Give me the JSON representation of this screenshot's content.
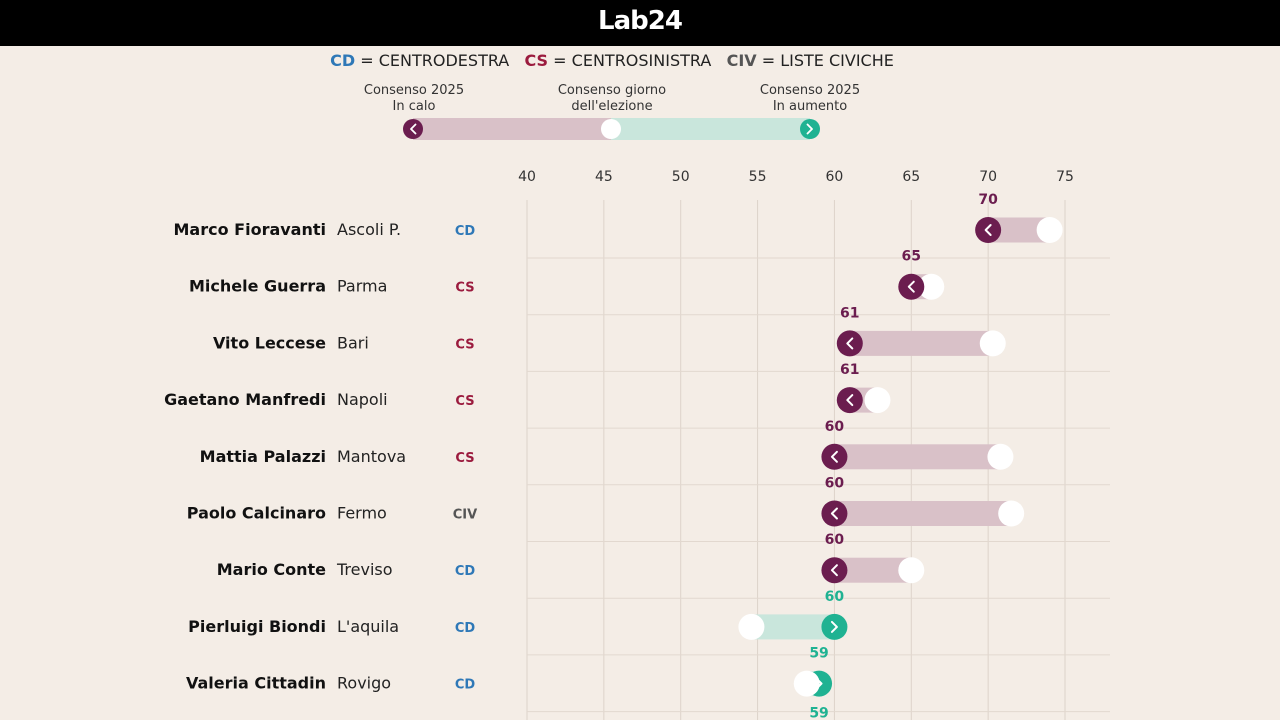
{
  "header": {
    "logo": "Lab24"
  },
  "legend": {
    "cd_code": "CD",
    "cd_label": "= CENTRODESTRA",
    "cs_code": "CS",
    "cs_label": "= CENTROSINISTRA",
    "civ_code": "CIV",
    "civ_label": "= LISTE CIVICHE",
    "left_l1": "Consenso 2025",
    "left_l2": "In calo",
    "mid_l1": "Consenso giorno",
    "mid_l2": "dell'elezione",
    "right_l1": "Consenso 2025",
    "right_l2": "In aumento"
  },
  "colors": {
    "background": "#f4ede6",
    "down": "#6b1d4f",
    "down_bar": "#d9c1c8",
    "up": "#1fb292",
    "up_bar": "#c9e6dc",
    "cd": "#2e78b7",
    "cs": "#9b1b3e",
    "civ": "#555555"
  },
  "chart_data": {
    "type": "dumbbell",
    "xlim": [
      37,
      76
    ],
    "ticks": [
      40,
      45,
      50,
      55,
      60,
      65,
      70,
      75
    ],
    "rows": [
      {
        "name": "Marco Fioravanti",
        "city": "Ascoli P.",
        "party": "CD",
        "election": 74,
        "current": 70,
        "label": "70"
      },
      {
        "name": "Michele Guerra",
        "city": "Parma",
        "party": "CS",
        "election": 66.3,
        "current": 65,
        "label": "65"
      },
      {
        "name": "Vito Leccese",
        "city": "Bari",
        "party": "CS",
        "election": 70.3,
        "current": 61,
        "label": "61"
      },
      {
        "name": "Gaetano Manfredi",
        "city": "Napoli",
        "party": "CS",
        "election": 62.8,
        "current": 61,
        "label": "61"
      },
      {
        "name": "Mattia Palazzi",
        "city": "Mantova",
        "party": "CS",
        "election": 70.8,
        "current": 60,
        "label": "60"
      },
      {
        "name": "Paolo Calcinaro",
        "city": "Fermo",
        "party": "CIV",
        "election": 71.5,
        "current": 60,
        "label": "60"
      },
      {
        "name": "Mario Conte",
        "city": "Treviso",
        "party": "CD",
        "election": 65,
        "current": 60,
        "label": "60"
      },
      {
        "name": "Pierluigi Biondi",
        "city": "L'aquila",
        "party": "CD",
        "election": 54.6,
        "current": 60,
        "label": "60"
      },
      {
        "name": "Valeria Cittadin",
        "city": "Rovigo",
        "party": "CD",
        "election": 58.2,
        "current": 59,
        "label": "59"
      }
    ],
    "extra_label": "59"
  }
}
